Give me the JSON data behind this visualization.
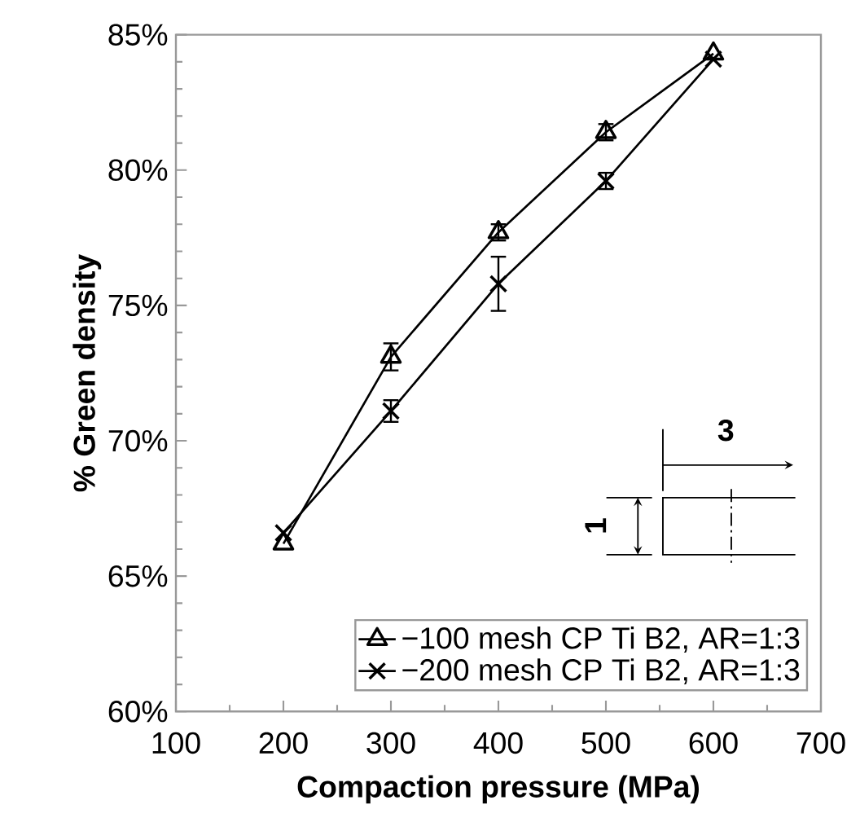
{
  "chart_data": {
    "type": "line",
    "xlabel": "Compaction pressure (MPa)",
    "ylabel": "% Green density",
    "x": [
      200,
      300,
      400,
      500,
      600
    ],
    "series": [
      {
        "name": "−100 mesh CP Ti B2, AR=1:3",
        "color": "#000000",
        "marker": "triangle",
        "values": [
          66.2,
          73.1,
          77.7,
          81.4,
          84.3
        ],
        "errors": [
          null,
          0.5,
          0.3,
          0.3,
          null
        ]
      },
      {
        "name": "−200 mesh CP Ti B2,  AR=1:3",
        "color": "#000000",
        "marker": "cross",
        "values": [
          66.6,
          71.1,
          75.8,
          79.6,
          84.1
        ],
        "errors": [
          null,
          0.4,
          1.0,
          0.3,
          null
        ]
      }
    ],
    "xlim": [
      100,
      700
    ],
    "xticks": [
      100,
      200,
      300,
      400,
      500,
      600,
      700
    ],
    "ylim": [
      60,
      85
    ],
    "yticks": [
      {
        "value": 60,
        "label": "60%"
      },
      {
        "value": 65,
        "label": "65%"
      },
      {
        "value": 70,
        "label": "70%"
      },
      {
        "value": 75,
        "label": "75%"
      },
      {
        "value": 80,
        "label": "80%"
      },
      {
        "value": 85,
        "label": "85%"
      }
    ],
    "annotations": [
      "3",
      "1"
    ],
    "legend": "bottom right",
    "grid": false,
    "line_style": "solid"
  }
}
